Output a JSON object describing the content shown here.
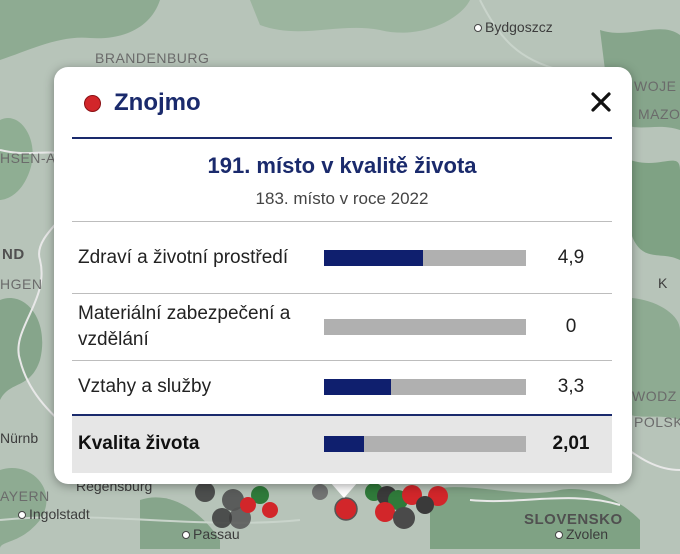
{
  "map": {
    "labels": {
      "bydgoszcz": "Bydgoszcz",
      "brandenburg": "BRANDENBURG",
      "sachsen_anhalt": "HSEN-A",
      "nd": "ND",
      "hgen": "HGEN",
      "nurnberg": "Nürnb",
      "bayern": "AYERN",
      "regensburg": "Regensburg",
      "ingolstadt": "Ingolstadt",
      "passau": "Passau",
      "slovensko": "SLOVENSKO",
      "zvolen": "Zvolen",
      "woje": "WOJE",
      "mazo": "MAZO",
      "k": "K",
      "wodz": "WODZ",
      "polsk": "POLSK"
    },
    "colors": {
      "land": "#b7c4b9",
      "forest": "#7fa284",
      "marker_red": "#d2262a",
      "marker_dark": "#3a3a3a",
      "marker_green": "#2f7a3a"
    }
  },
  "popup": {
    "city_name": "Znojmo",
    "marker_color": "#d2262a",
    "close_icon": "close-icon",
    "rank_title": "191. místo v kvalitě života",
    "rank_subtitle": "183. místo v roce 2022",
    "metrics": [
      {
        "label": "Zdraví a životní prostředí",
        "value": "4,9",
        "fill": 0.49
      },
      {
        "label": "Materiální zabezpečení a vzdělání",
        "value": "0",
        "fill": 0
      },
      {
        "label": "Vztahy a služby",
        "value": "3,3",
        "fill": 0.33
      }
    ],
    "total": {
      "label": "Kvalita života",
      "value": "2,01",
      "fill": 0.2
    },
    "accent_color": "#1a2a6c",
    "bar_fill_color": "#0f1f6e",
    "bar_track_color": "#b0b0b0"
  }
}
